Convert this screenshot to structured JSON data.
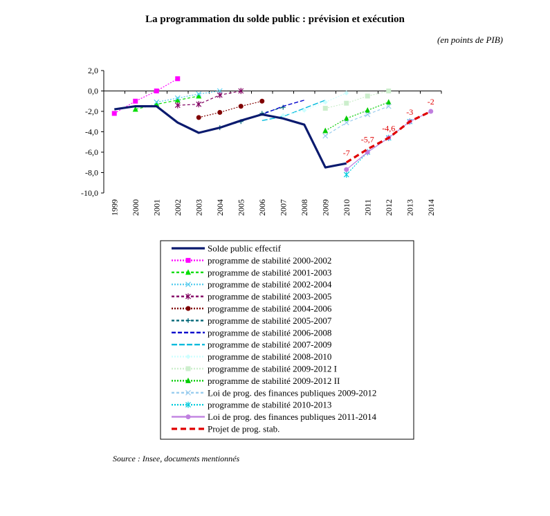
{
  "page": {
    "title": "La programmation du solde public : prévision et exécution",
    "unit_note": "(en points de PIB)",
    "source": "Source : Insee, documents mentionnés"
  },
  "chart_data": {
    "type": "line",
    "title": "La programmation du solde public : prévision et exécution",
    "ylabel": "en points de PIB",
    "xlabel": "",
    "ylim": [
      -10,
      2
    ],
    "yticks": [
      2,
      0,
      -2,
      -4,
      -6,
      -8,
      -10
    ],
    "ytick_labels": [
      "2,0",
      "0,0",
      "-2,0",
      "-4,0",
      "-6,0",
      "-8,0",
      "-10,0"
    ],
    "xlim": [
      1999,
      2014
    ],
    "categories": [
      "1999",
      "2000",
      "2001",
      "2002",
      "2003",
      "2004",
      "2005",
      "2006",
      "2007",
      "2008",
      "2009",
      "2010",
      "2011",
      "2012",
      "2013",
      "2014"
    ],
    "legend_position": "below",
    "series": [
      {
        "name": "Solde public effectif",
        "color": "#0a1a6e",
        "width": 3.2,
        "dash": "",
        "marker": "none",
        "points": [
          [
            1999,
            -1.8
          ],
          [
            2000,
            -1.5
          ],
          [
            2001,
            -1.5
          ],
          [
            2002,
            -3.1
          ],
          [
            2003,
            -4.1
          ],
          [
            2004,
            -3.6
          ],
          [
            2005,
            -2.9
          ],
          [
            2006,
            -2.3
          ],
          [
            2007,
            -2.7
          ],
          [
            2008,
            -3.3
          ],
          [
            2009,
            -7.5
          ],
          [
            2010,
            -7.1
          ]
        ]
      },
      {
        "name": "programme de stabilité 2000-2002",
        "color": "#ff00ff",
        "width": 1.2,
        "dash": "2,2",
        "marker": "square",
        "points": [
          [
            1999,
            -2.2
          ],
          [
            2000,
            -1.0
          ],
          [
            2001,
            0.0
          ],
          [
            2002,
            1.2
          ]
        ]
      },
      {
        "name": "programme de stabilité 2001-2003",
        "color": "#00dd00",
        "width": 1.2,
        "dash": "4,3",
        "marker": "triangle",
        "points": [
          [
            2000,
            -1.8
          ],
          [
            2001,
            -1.3
          ],
          [
            2002,
            -0.9
          ],
          [
            2003,
            -0.5
          ]
        ]
      },
      {
        "name": "programme de stabilité 2002-2004",
        "color": "#55ccee",
        "width": 1.2,
        "dash": "2,2",
        "marker": "x",
        "points": [
          [
            2001,
            -1.1
          ],
          [
            2002,
            -0.7
          ],
          [
            2003,
            -0.3
          ],
          [
            2004,
            0.0
          ]
        ]
      },
      {
        "name": "programme de stabilité 2003-2005",
        "color": "#800060",
        "width": 1.2,
        "dash": "4,3",
        "marker": "star",
        "points": [
          [
            2002,
            -1.4
          ],
          [
            2003,
            -1.3
          ],
          [
            2004,
            -0.4
          ],
          [
            2005,
            0.0
          ]
        ]
      },
      {
        "name": "programme de stabilité 2004-2006",
        "color": "#800000",
        "width": 1.2,
        "dash": "2,2",
        "marker": "circle",
        "points": [
          [
            2003,
            -2.6
          ],
          [
            2004,
            -2.1
          ],
          [
            2005,
            -1.5
          ],
          [
            2006,
            -1.0
          ]
        ]
      },
      {
        "name": "programme de stabilité 2005-2007",
        "color": "#006677",
        "width": 1.2,
        "dash": "4,3",
        "marker": "plus",
        "points": [
          [
            2004,
            -3.6
          ],
          [
            2005,
            -3.0
          ],
          [
            2006,
            -2.2
          ],
          [
            2007,
            -1.6
          ]
        ]
      },
      {
        "name": "programme de stabilité 2006-2008",
        "color": "#0000cc",
        "width": 1.4,
        "dash": "6,3",
        "marker": "none",
        "points": [
          [
            2005,
            -2.9
          ],
          [
            2006,
            -2.3
          ],
          [
            2007,
            -1.5
          ],
          [
            2008,
            -0.9
          ]
        ]
      },
      {
        "name": "programme de stabilité 2007-2009",
        "color": "#00bbdd",
        "width": 1.4,
        "dash": "8,3",
        "marker": "none",
        "points": [
          [
            2006,
            -2.9
          ],
          [
            2007,
            -2.5
          ],
          [
            2008,
            -1.7
          ],
          [
            2009,
            -0.9
          ]
        ]
      },
      {
        "name": "programme de stabilité 2008-2010",
        "color": "#ccffff",
        "width": 1.2,
        "dash": "2,2",
        "marker": "diamond",
        "points": [
          [
            2007,
            -2.4
          ],
          [
            2008,
            -1.9
          ],
          [
            2009,
            -1.1
          ],
          [
            2010,
            -0.2
          ]
        ]
      },
      {
        "name": "programme de stabilité 2009-2012 I",
        "color": "#cceecc",
        "width": 1.2,
        "dash": "2,2",
        "marker": "square",
        "points": [
          [
            2009,
            -1.7
          ],
          [
            2010,
            -1.2
          ],
          [
            2011,
            -0.5
          ],
          [
            2012,
            0.0
          ]
        ]
      },
      {
        "name": "programme de stabilité 2009-2012 II",
        "color": "#00cc00",
        "width": 1.2,
        "dash": "2,2",
        "marker": "triangle",
        "points": [
          [
            2009,
            -3.9
          ],
          [
            2010,
            -2.7
          ],
          [
            2011,
            -1.9
          ],
          [
            2012,
            -1.1
          ]
        ]
      },
      {
        "name": "Loi de prog. des finances publiques 2009-2012",
        "color": "#99ccee",
        "width": 1.2,
        "dash": "4,3",
        "marker": "x",
        "points": [
          [
            2009,
            -4.4
          ],
          [
            2010,
            -3.1
          ],
          [
            2011,
            -2.3
          ],
          [
            2012,
            -1.5
          ]
        ]
      },
      {
        "name": "programme de stabilité 2010-2013",
        "color": "#00ccdd",
        "width": 1.2,
        "dash": "2,2",
        "marker": "star",
        "points": [
          [
            2010,
            -8.2
          ],
          [
            2011,
            -6.0
          ],
          [
            2012,
            -4.6
          ],
          [
            2013,
            -3.0
          ]
        ]
      },
      {
        "name": "Loi de prog. des finances publiques 2011-2014",
        "color": "#c080e0",
        "width": 1.2,
        "dash": "",
        "marker": "circle",
        "points": [
          [
            2010,
            -7.7
          ],
          [
            2011,
            -6.0
          ],
          [
            2012,
            -4.6
          ],
          [
            2013,
            -3.0
          ],
          [
            2014,
            -2.0
          ]
        ]
      },
      {
        "name": "Projet de prog. stab.",
        "color": "#e00000",
        "width": 3.2,
        "dash": "8,5",
        "marker": "none",
        "points": [
          [
            2010,
            -7.0
          ],
          [
            2011,
            -5.7
          ],
          [
            2012,
            -4.6
          ],
          [
            2013,
            -3.0
          ],
          [
            2014,
            -2.0
          ]
        ]
      }
    ],
    "annotations": [
      {
        "text": "-7",
        "x": 2010,
        "y": -7.0,
        "color": "#e00000"
      },
      {
        "text": "-5,7",
        "x": 2011,
        "y": -5.7,
        "color": "#e00000"
      },
      {
        "text": "-4,6",
        "x": 2012,
        "y": -4.6,
        "color": "#e00000"
      },
      {
        "text": "-3",
        "x": 2013,
        "y": -3.0,
        "color": "#e00000"
      },
      {
        "text": "-2",
        "x": 2014,
        "y": -2.0,
        "color": "#e00000"
      }
    ]
  }
}
